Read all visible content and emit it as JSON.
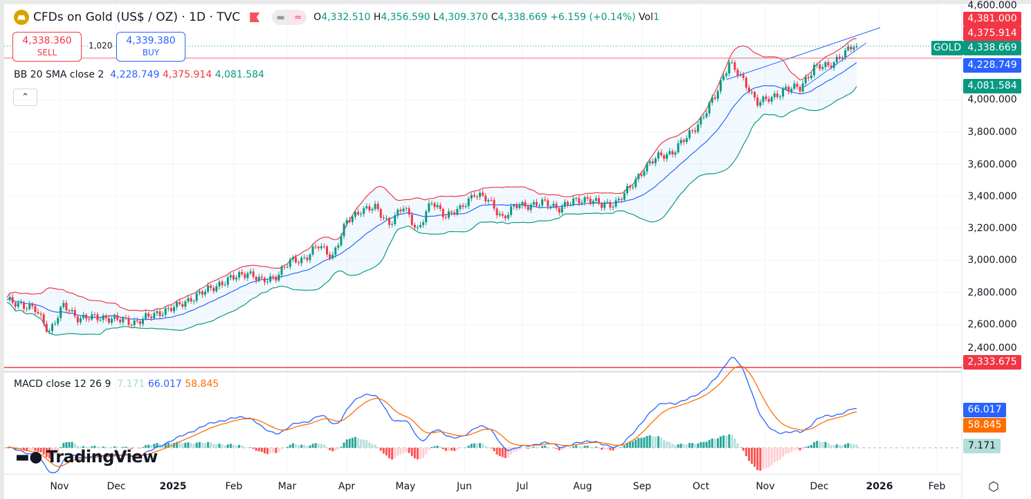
{
  "header": {
    "title": "CFDs on Gold (US$ / OZ) · 1D · TVC",
    "open_label": "O",
    "open": "4,332.510",
    "high_label": "H",
    "high": "4,356.590",
    "low_label": "L",
    "low": "4,309.370",
    "close_label": "C",
    "close": "4,338.669",
    "change": "+6.159 (+0.14%)",
    "vol_label": "Vol",
    "vol": "1"
  },
  "trade": {
    "sell_price": "4,338.360",
    "sell_label": "SELL",
    "spread": "1,020",
    "buy_price": "4,339.380",
    "buy_label": "BUY"
  },
  "bb": {
    "label": "BB 20 SMA close 2",
    "basis": "4,228.749",
    "upper": "4,375.914",
    "lower": "4,081.584"
  },
  "macd": {
    "label": "MACD close 12 26 9",
    "hist": "7.171",
    "macd": "66.017",
    "signal": "58.845"
  },
  "price_axis": {
    "ticks": [
      "4,600.000",
      "4,000.000",
      "3,800.000",
      "3,600.000",
      "3,400.000",
      "3,200.000",
      "3,000.000",
      "2,800.000",
      "2,600.000",
      "2,400.000"
    ],
    "tags": {
      "high": "4,381.000",
      "upper": "4,375.914",
      "symbol": "GOLD",
      "last": "4,338.669",
      "basis": "4,228.749",
      "lower": "4,081.584",
      "line": "2,333.675"
    }
  },
  "time_axis": [
    "Nov",
    "Dec",
    "2025",
    "Feb",
    "Mar",
    "Apr",
    "May",
    "Jun",
    "Jul",
    "Aug",
    "Sep",
    "Oct",
    "Nov",
    "Dec",
    "2026",
    "Feb"
  ],
  "brand": "TradingView",
  "colors": {
    "up": "#089981",
    "down": "#f23645",
    "basis": "#2962ff",
    "macd": "#2962ff",
    "signal": "#ff6d00"
  },
  "chart_data": {
    "type": "candlestick",
    "symbol": "GOLD",
    "interval": "1D",
    "ylim": [
      2400,
      4600
    ],
    "weeks": [
      "2024-10-25",
      "2024-11-01",
      "2024-11-08",
      "2024-11-15",
      "2024-11-22",
      "2024-11-29",
      "2024-12-06",
      "2024-12-13",
      "2024-12-20",
      "2024-12-27",
      "2025-01-03",
      "2025-01-10",
      "2025-01-17",
      "2025-01-24",
      "2025-01-31",
      "2025-02-07",
      "2025-02-14",
      "2025-02-21",
      "2025-02-28",
      "2025-03-07",
      "2025-03-14",
      "2025-03-21",
      "2025-03-28",
      "2025-04-04",
      "2025-04-11",
      "2025-04-18",
      "2025-04-25",
      "2025-05-02",
      "2025-05-09",
      "2025-05-16",
      "2025-05-23",
      "2025-05-30",
      "2025-06-06",
      "2025-06-13",
      "2025-06-20",
      "2025-06-27",
      "2025-07-04",
      "2025-07-11",
      "2025-07-18",
      "2025-07-25",
      "2025-08-01",
      "2025-08-08",
      "2025-08-15",
      "2025-08-22",
      "2025-08-29",
      "2025-09-05",
      "2025-09-12",
      "2025-09-19",
      "2025-09-26",
      "2025-10-03",
      "2025-10-10",
      "2025-10-17",
      "2025-10-24",
      "2025-10-31",
      "2025-11-07",
      "2025-11-14",
      "2025-11-21",
      "2025-11-28",
      "2025-12-05",
      "2025-12-12",
      "2025-12-19"
    ],
    "close": [
      2740,
      2735,
      2685,
      2565,
      2710,
      2650,
      2635,
      2650,
      2620,
      2620,
      2640,
      2690,
      2705,
      2770,
      2800,
      2860,
      2885,
      2935,
      2860,
      2910,
      2985,
      3020,
      3085,
      3035,
      3235,
      3325,
      3320,
      3240,
      3325,
      3200,
      3355,
      3290,
      3310,
      3430,
      3365,
      3275,
      3335,
      3355,
      3350,
      3335,
      3360,
      3395,
      3335,
      3370,
      3445,
      3585,
      3640,
      3685,
      3760,
      3885,
      4015,
      4250,
      4110,
      4000,
      4000,
      4085,
      4065,
      4220,
      4200,
      4300,
      4338.669
    ],
    "indicators": [
      "BB 20 SMA close 2",
      "MACD close 12 26 9"
    ]
  }
}
